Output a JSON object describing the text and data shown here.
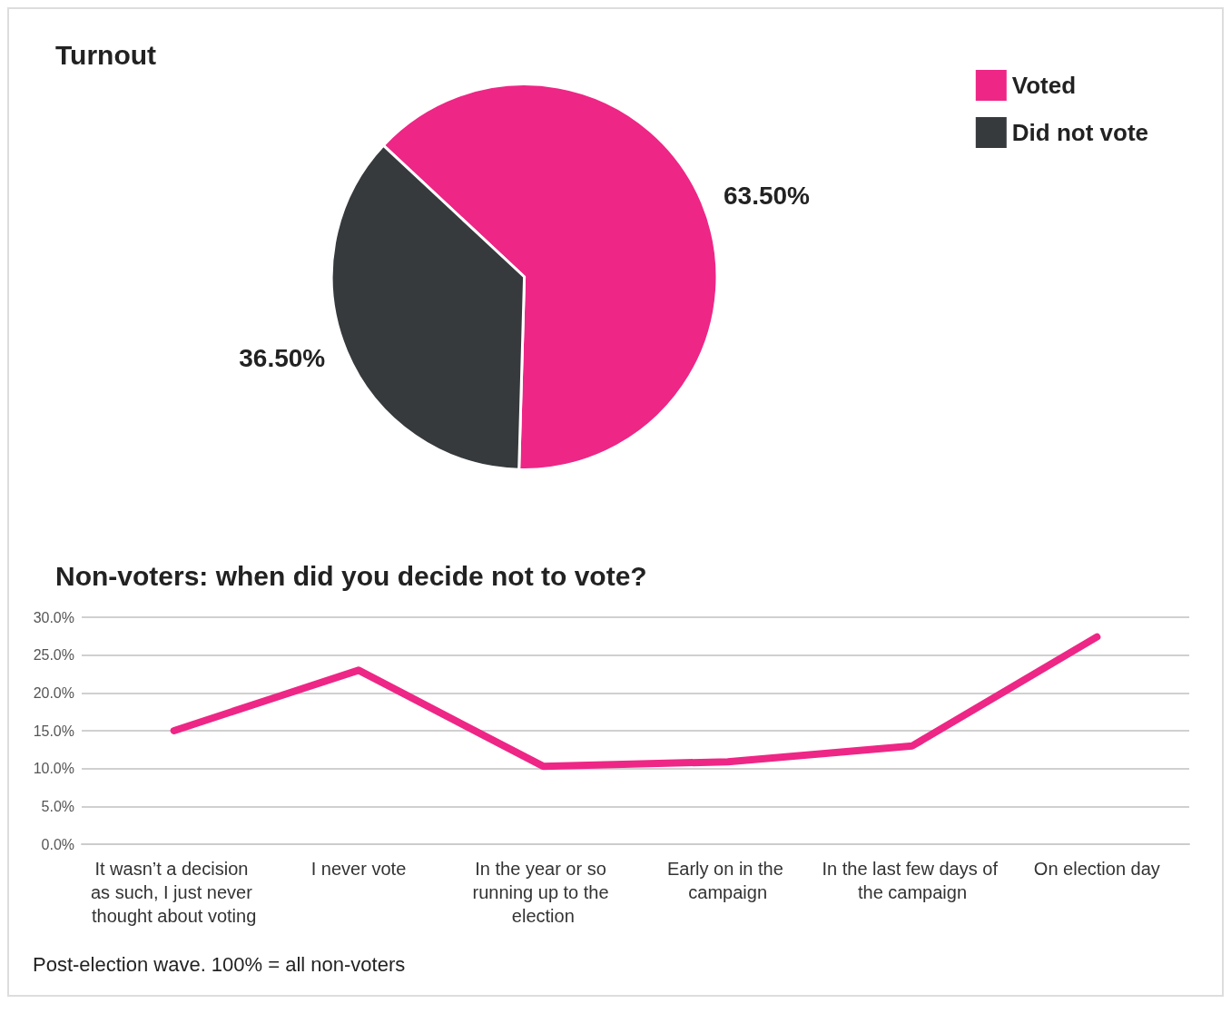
{
  "chart_data": [
    {
      "type": "pie",
      "title": "Turnout",
      "categories": [
        "Voted",
        "Did not vote"
      ],
      "values": [
        63.5,
        36.5
      ],
      "colors": [
        "#ee2686",
        "#363a3d"
      ],
      "value_labels": [
        "63.50%",
        "36.50%"
      ],
      "legend": "top right"
    },
    {
      "type": "line",
      "title": "Non-voters: when did you decide not to vote?",
      "categories": [
        "It wasn’t a decision as such, I just never thought about voting",
        "I never vote",
        "In the year or so running up to the election",
        "Early on in the campaign",
        "In the last few days of the campaign",
        "On election day"
      ],
      "series": [
        {
          "color": "#ee2686",
          "values": [
            15.0,
            23.0,
            10.3,
            10.9,
            13.0,
            27.4
          ]
        }
      ],
      "ylim": [
        0,
        30
      ],
      "yticks": [
        {
          "value": 0,
          "label": "0.0%"
        },
        {
          "value": 5,
          "label": "5.0%"
        },
        {
          "value": 10,
          "label": "10.0%"
        },
        {
          "value": 15,
          "label": "15.0%"
        },
        {
          "value": 20,
          "label": "20.0%"
        },
        {
          "value": 25,
          "label": "25.0%"
        },
        {
          "value": 30,
          "label": "30.0%"
        }
      ],
      "grid": "y",
      "line_style": "solid",
      "legend": false,
      "annotations": [
        "Post-election wave. 100% = all non-voters"
      ]
    }
  ]
}
